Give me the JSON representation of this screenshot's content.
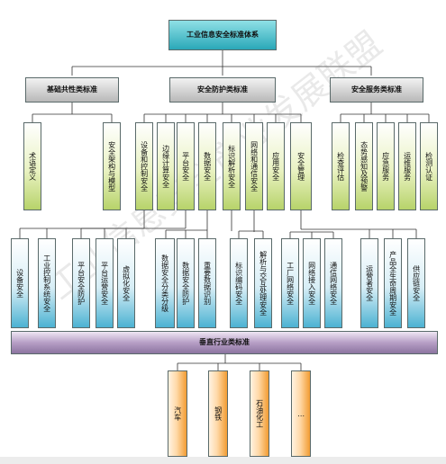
{
  "root": "工业信息安全标准体系",
  "level1": {
    "basic": "基础共性类标准",
    "protection": "安全防护类标准",
    "service": "安全服务类标准"
  },
  "basic_children": [
    "术语定义",
    "安全架构与模型"
  ],
  "protection_children": [
    "设备和控制安全",
    "边缘计算安全",
    "平台安全",
    "数据安全",
    "标识解析安全",
    "网络和通信安全",
    "应用安全",
    "安全管理"
  ],
  "service_children": [
    "检查评估",
    "态势感知及预警",
    "应急服务",
    "运维服务",
    "检测认证"
  ],
  "level3": {
    "device_control": [
      "设备安全",
      "工业控制系统安全"
    ],
    "platform": [
      "平台安全防护",
      "平台运营安全",
      "虚拟化安全"
    ],
    "data": [
      "数据安全分类分级",
      "数据安全防护",
      "重要数据识别"
    ],
    "identifier": [
      "标识编码安全",
      "解析与交互处理安全"
    ],
    "network": [
      "工厂网络安全",
      "网络接入安全",
      "通信网络安全"
    ],
    "management": [
      "运营者安全",
      "产品全生命周期安全",
      "供应链安全"
    ]
  },
  "vertical": {
    "title": "垂直行业类标准",
    "industries": [
      "汽车",
      "钢铁",
      "石油化工",
      "…"
    ]
  },
  "watermark": "工业信息安全产业发展联盟"
}
